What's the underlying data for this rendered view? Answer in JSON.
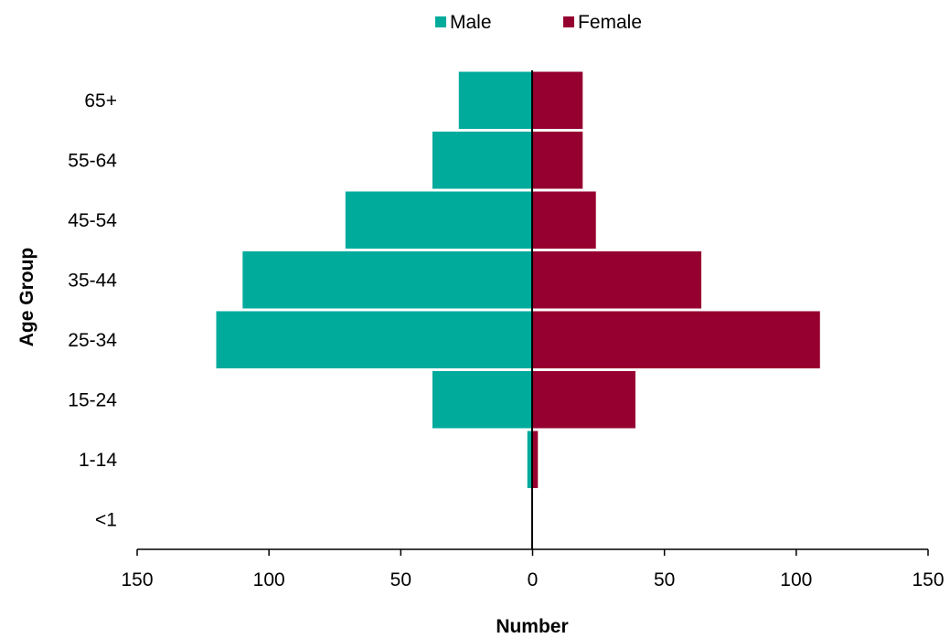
{
  "chart_data": {
    "type": "bar",
    "orientation": "horizontal",
    "title": "",
    "xlabel": "Number",
    "ylabel": "Age Group",
    "categories": [
      "<1",
      "1-14",
      "15-24",
      "25-34",
      "35-44",
      "45-54",
      "55-64",
      "65+"
    ],
    "series": [
      {
        "name": "Male",
        "color": "#00ab9c",
        "direction": "left",
        "values": [
          0,
          2,
          38,
          120,
          110,
          71,
          38,
          28
        ]
      },
      {
        "name": "Female",
        "color": "#960030",
        "direction": "right",
        "values": [
          0,
          2,
          39,
          109,
          64,
          24,
          19,
          19
        ]
      }
    ],
    "xlim": [
      -150,
      150
    ],
    "xticks": [
      -150,
      -100,
      -50,
      0,
      50,
      100,
      150
    ],
    "xtick_labels": [
      "150",
      "100",
      "50",
      "0",
      "50",
      "100",
      "150"
    ],
    "legend_position": "top-center",
    "grid": false
  }
}
